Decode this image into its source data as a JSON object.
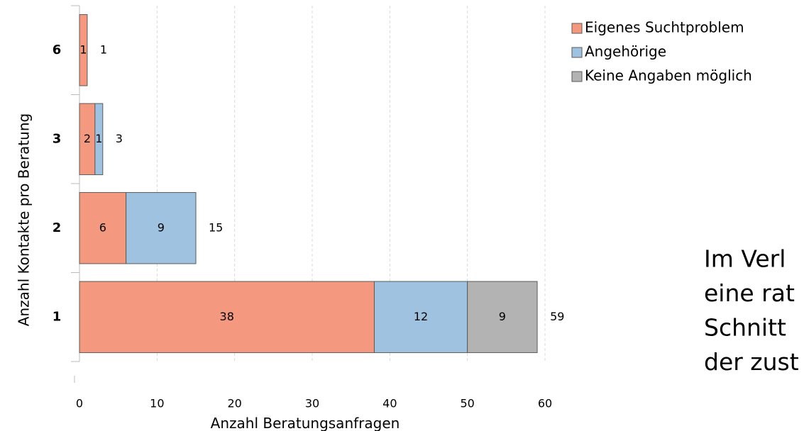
{
  "chart_data": {
    "type": "stacked-barh",
    "categories": [
      "1",
      "2",
      "3",
      "6"
    ],
    "series": [
      {
        "name": "Eigenes Suchtproblem",
        "color": "#f4997f",
        "values": [
          38,
          6,
          2,
          1
        ]
      },
      {
        "name": "Angehörige",
        "color": "#9fc2e0",
        "values": [
          12,
          9,
          1,
          null
        ]
      },
      {
        "name": "Keine Angaben möglich",
        "color": "#b3b3b3",
        "values": [
          9,
          null,
          null,
          null
        ]
      }
    ],
    "totals": [
      59,
      15,
      3,
      1
    ],
    "xlabel": "Anzahl Beratungsanfragen",
    "ylabel": "Anzahl Kontakte pro Beratung",
    "xlim": [
      0,
      60
    ],
    "xticks": [
      0,
      10,
      20,
      30,
      40,
      50,
      60
    ],
    "grid": true,
    "legend": "upper right"
  },
  "side_text": [
    "Im Verl",
    "eine rat",
    "Schnitt",
    "der zust"
  ]
}
